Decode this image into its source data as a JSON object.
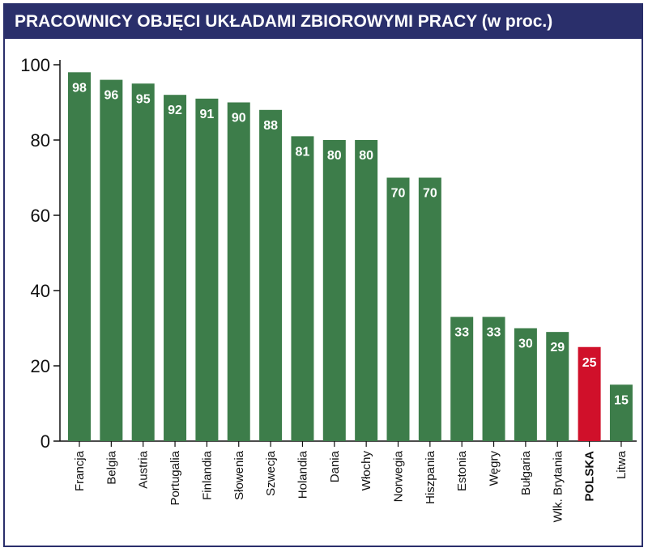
{
  "chart_data": {
    "type": "bar",
    "title": "PRACOWNICY OBJĘCI UKŁADAMI ZBIOROWYMI PRACY (w proc.)",
    "xlabel": "",
    "ylabel": "",
    "ylim": [
      0,
      100
    ],
    "yticks": [
      "0",
      "20",
      "40",
      "60",
      "80",
      "100"
    ],
    "grid": false,
    "categories": [
      "Francja",
      "Belgia",
      "Austria",
      "Portugalia",
      "Finlandia",
      "Słowenia",
      "Szwecja",
      "Holandia",
      "Dania",
      "Włochy",
      "Norwegia",
      "Hiszpania",
      "Estonia",
      "Węgry",
      "Bułgaria",
      "Wlk. Brytania",
      "POLSKA",
      "Litwa"
    ],
    "values": [
      98,
      96,
      95,
      92,
      91,
      90,
      88,
      81,
      80,
      80,
      70,
      70,
      33,
      33,
      30,
      29,
      25,
      15
    ],
    "highlight_index": 16
  },
  "colors": {
    "bar": "#3d7d4a",
    "highlight": "#d0102a",
    "title_bg": "#2a2f6b",
    "title_text": "#ffffff",
    "axis": "#111111"
  }
}
